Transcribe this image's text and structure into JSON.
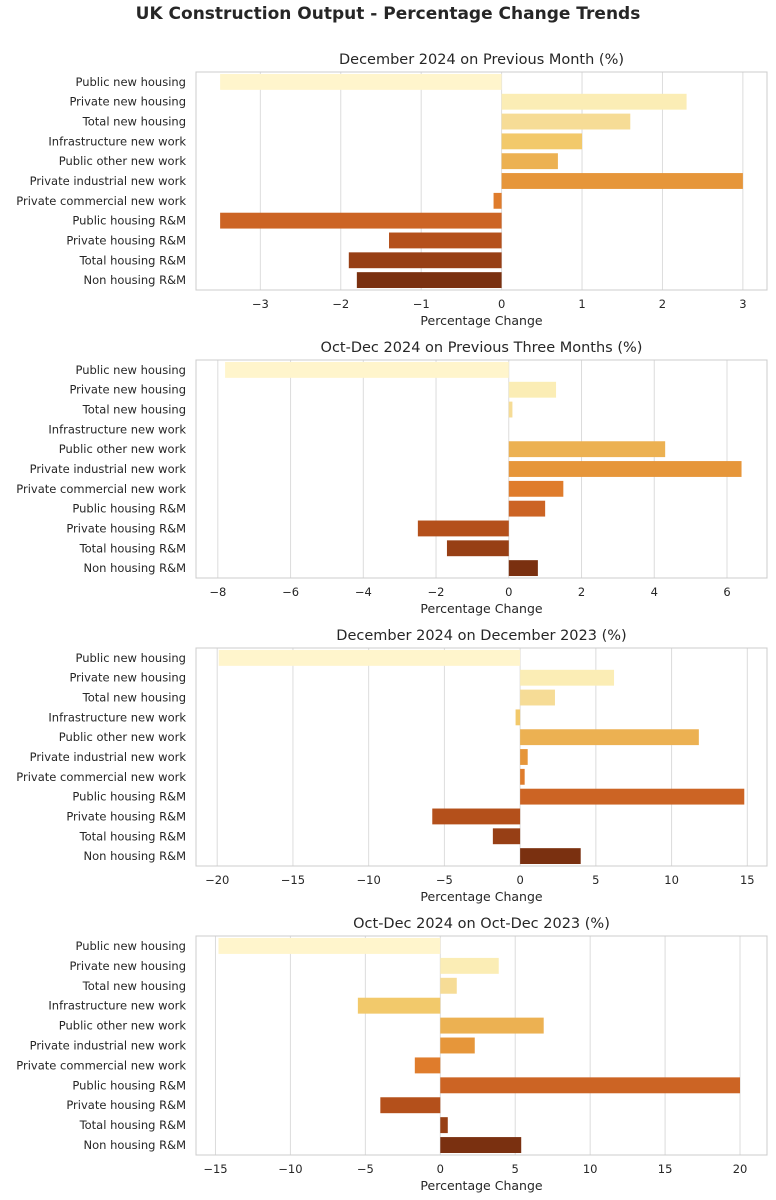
{
  "figure": {
    "title": "UK Construction Output - Percentage Change Trends"
  },
  "categories": [
    "Public new housing",
    "Private new housing",
    "Total new housing",
    "Infrastructure new work",
    "Public other new work",
    "Private industrial new work",
    "Private commercial new work",
    "Public housing R&M",
    "Private housing R&M",
    "Total housing R&M",
    "Non housing R&M"
  ],
  "palette": [
    "#fff5cc",
    "#fbedb5",
    "#f6dc96",
    "#f2c96b",
    "#ecb152",
    "#e6963a",
    "#df7c2c",
    "#cc6424",
    "#b4501b",
    "#973f15",
    "#7a3010"
  ],
  "chart_data": [
    {
      "type": "bar",
      "orientation": "horizontal",
      "title": "December 2024 on Previous Month (%)",
      "xlabel": "Percentage Change",
      "xlim": [
        -3.8,
        3.3
      ],
      "ticks": [
        -3,
        -2,
        -1,
        0,
        1,
        2,
        3
      ],
      "tick_labels": [
        "−3",
        "−2",
        "−1",
        "0",
        "1",
        "2",
        "3"
      ],
      "values": [
        -3.5,
        2.3,
        1.6,
        1.0,
        0.7,
        3.0,
        -0.1,
        -3.5,
        -1.4,
        -1.9,
        -1.8
      ]
    },
    {
      "type": "bar",
      "orientation": "horizontal",
      "title": "Oct-Dec 2024 on Previous Three Months (%)",
      "xlabel": "Percentage Change",
      "xlim": [
        -8.6,
        7.1
      ],
      "ticks": [
        -8,
        -6,
        -4,
        -2,
        0,
        2,
        4,
        6
      ],
      "tick_labels": [
        "−8",
        "−6",
        "−4",
        "−2",
        "0",
        "2",
        "4",
        "6"
      ],
      "values": [
        -7.8,
        1.3,
        0.1,
        0.0,
        4.3,
        6.4,
        1.5,
        1.0,
        -2.5,
        -1.7,
        0.8
      ]
    },
    {
      "type": "bar",
      "orientation": "horizontal",
      "title": "December 2024 on December 2023 (%)",
      "xlabel": "Percentage Change",
      "xlim": [
        -21.4,
        16.3
      ],
      "ticks": [
        -20,
        -15,
        -10,
        -5,
        0,
        5,
        10,
        15
      ],
      "tick_labels": [
        "−20",
        "−15",
        "−10",
        "−5",
        "0",
        "5",
        "10",
        "15"
      ],
      "values": [
        -19.9,
        6.2,
        2.3,
        -0.3,
        11.8,
        0.5,
        0.3,
        14.8,
        -5.8,
        -1.8,
        4.0
      ]
    },
    {
      "type": "bar",
      "orientation": "horizontal",
      "title": "Oct-Dec 2024 on Oct-Dec 2023 (%)",
      "xlabel": "Percentage Change",
      "xlim": [
        -16.3,
        21.8
      ],
      "ticks": [
        -15,
        -10,
        -5,
        0,
        5,
        10,
        15,
        20
      ],
      "tick_labels": [
        "−15",
        "−10",
        "−5",
        "0",
        "5",
        "10",
        "15",
        "20"
      ],
      "values": [
        -14.8,
        3.9,
        1.1,
        -5.5,
        6.9,
        2.3,
        -1.7,
        20.0,
        -4.0,
        0.5,
        5.4
      ]
    }
  ]
}
